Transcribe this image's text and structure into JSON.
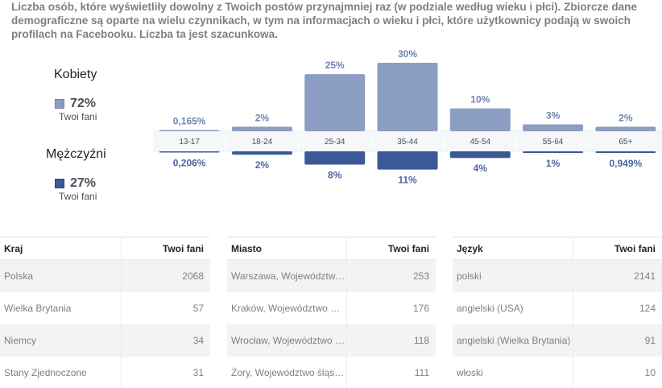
{
  "description": "Liczba osób, które wyświetliły dowolny z Twoich postów przynajmniej raz (w podziale według wieku i płci). Zbiorcze dane demograficzne są oparte na wielu czynnikach, w tym na informacjach o wieku i płci, które użytkownicy podają w swoich profilach na Facebooku. Liczba ta jest szacunkowa.",
  "legend": {
    "women": {
      "title": "Kobiety",
      "value": "72%",
      "sub": "Twoi fani"
    },
    "men": {
      "title": "Mężczyźni",
      "value": "27%",
      "sub": "Twoi fani"
    }
  },
  "colors": {
    "women": "#8b9dc3",
    "men": "#3b5998",
    "women_label": "#6f83b0",
    "men_label": "#4a66a0"
  },
  "chart_data": {
    "type": "bar",
    "categories": [
      "13-17",
      "18-24",
      "25-34",
      "35-44",
      "45-54",
      "55-64",
      "65+"
    ],
    "series": [
      {
        "name": "Kobiety",
        "values": [
          0.165,
          2,
          25,
          30,
          10,
          3,
          2
        ],
        "labels": [
          "0,165%",
          "2%",
          "25%",
          "30%",
          "10%",
          "3%",
          "2%"
        ]
      },
      {
        "name": "Mężczyźni",
        "values": [
          0.206,
          2,
          8,
          11,
          4,
          1,
          0.949
        ],
        "labels": [
          "0,206%",
          "2%",
          "8%",
          "11%",
          "4%",
          "1%",
          "0,949%"
        ]
      }
    ],
    "ylim": [
      0,
      30
    ]
  },
  "tables": [
    {
      "col1": "Kraj",
      "col2": "Twoi fani",
      "rows": [
        {
          "name": "Polska",
          "value": "2068"
        },
        {
          "name": "Wielka Brytania",
          "value": "57"
        },
        {
          "name": "Niemcy",
          "value": "34"
        },
        {
          "name": "Stany Zjednoczone",
          "value": "31"
        }
      ]
    },
    {
      "col1": "Miasto",
      "col2": "Twoi fani",
      "rows": [
        {
          "name": "Warszawa, Województwo mazowieckie",
          "value": "253"
        },
        {
          "name": "Kraków, Województwo małopolskie",
          "value": "176"
        },
        {
          "name": "Wrocław, Województwo dolnośląskie",
          "value": "118"
        },
        {
          "name": "Żory, Województwo śląskie",
          "value": "111"
        }
      ]
    },
    {
      "col1": "Język",
      "col2": "Twoi fani",
      "rows": [
        {
          "name": "polski",
          "value": "2141"
        },
        {
          "name": "angielski (USA)",
          "value": "124"
        },
        {
          "name": "angielski (Wielka Brytania)",
          "value": "91"
        },
        {
          "name": "włoski",
          "value": "10"
        }
      ]
    }
  ]
}
